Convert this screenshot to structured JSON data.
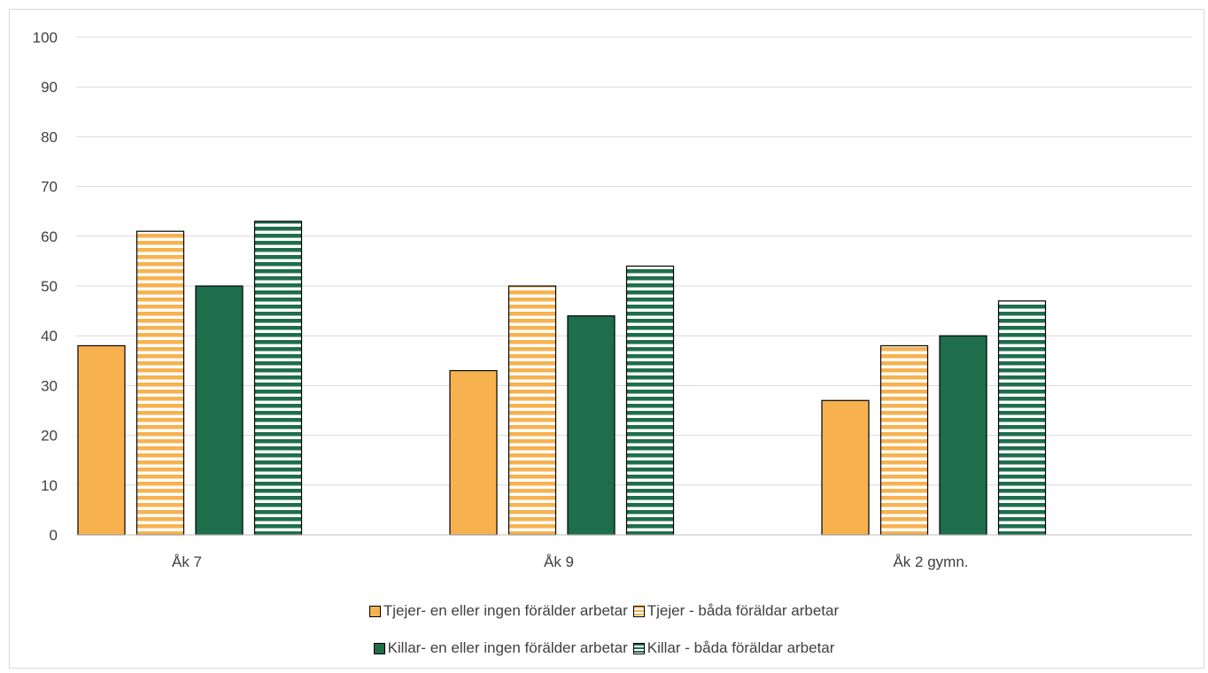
{
  "chart_data": {
    "type": "bar",
    "categories": [
      "Åk 7",
      "Åk 9",
      "Åk 2 gymn."
    ],
    "series": [
      {
        "name": "Tjejer- en eller ingen förälder arbetar",
        "values": [
          38,
          33,
          27
        ],
        "color": "#F7B24F",
        "pattern": "solid"
      },
      {
        "name": "Tjejer - båda föräldar arbetar",
        "values": [
          61,
          50,
          38
        ],
        "color": "#F7B24F",
        "pattern": "horizontal-stripes"
      },
      {
        "name": "Killar- en eller ingen förälder arbetar",
        "values": [
          50,
          44,
          40
        ],
        "color": "#1E6E4C",
        "pattern": "solid"
      },
      {
        "name": "Killar - båda föräldar arbetar",
        "values": [
          63,
          54,
          47
        ],
        "color": "#1E6E4C",
        "pattern": "horizontal-stripes"
      }
    ],
    "ylim": [
      0,
      100
    ],
    "yticks": [
      "0",
      "10",
      "20",
      "30",
      "40",
      "50",
      "60",
      "70",
      "80",
      "90",
      "100"
    ],
    "grid": true,
    "legend_position": "bottom",
    "title": "",
    "xlabel": "",
    "ylabel": ""
  }
}
